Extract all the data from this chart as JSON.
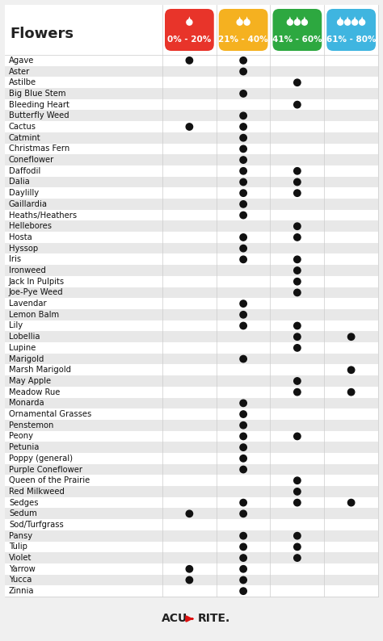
{
  "title": "Flowers",
  "columns": [
    "0% - 20%",
    "21% - 40%",
    "41% - 60%",
    "61% - 80%"
  ],
  "col_colors": [
    "#e8342a",
    "#f5b120",
    "#2da840",
    "#3fb5e0"
  ],
  "flowers": [
    "Agave",
    "Aster",
    "Astilbe",
    "Big Blue Stem",
    "Bleeding Heart",
    "Butterfly Weed",
    "Cactus",
    "Catmint",
    "Christmas Fern",
    "Coneflower",
    "Daffodil",
    "Dalia",
    "Daylilly",
    "Gaillardia",
    "Heaths/Heathers",
    "Hellebores",
    "Hosta",
    "Hyssop",
    "Iris",
    "Ironweed",
    "Jack In Pulpits",
    "Joe-Pye Weed",
    "Lavendar",
    "Lemon Balm",
    "Lily",
    "Lobellia",
    "Lupine",
    "Marigold",
    "Marsh Marigold",
    "May Apple",
    "Meadow Rue",
    "Monarda",
    "Ornamental Grasses",
    "Penstemon",
    "Peony",
    "Petunia",
    "Poppy (general)",
    "Purple Coneflower",
    "Queen of the Prairie",
    "Red Milkweed",
    "Sedges",
    "Sedum",
    "Sod/Turfgrass",
    "Pansy",
    "Tulip",
    "Violet",
    "Yarrow",
    "Yucca",
    "Zinnia"
  ],
  "dots": {
    "Agave": [
      1,
      1,
      0,
      0
    ],
    "Aster": [
      0,
      1,
      0,
      0
    ],
    "Astilbe": [
      0,
      0,
      1,
      0
    ],
    "Big Blue Stem": [
      0,
      1,
      0,
      0
    ],
    "Bleeding Heart": [
      0,
      0,
      1,
      0
    ],
    "Butterfly Weed": [
      0,
      1,
      0,
      0
    ],
    "Cactus": [
      1,
      1,
      0,
      0
    ],
    "Catmint": [
      0,
      1,
      0,
      0
    ],
    "Christmas Fern": [
      0,
      1,
      0,
      0
    ],
    "Coneflower": [
      0,
      1,
      0,
      0
    ],
    "Daffodil": [
      0,
      1,
      1,
      0
    ],
    "Dalia": [
      0,
      1,
      1,
      0
    ],
    "Daylilly": [
      0,
      1,
      1,
      0
    ],
    "Gaillardia": [
      0,
      1,
      0,
      0
    ],
    "Heaths/Heathers": [
      0,
      1,
      0,
      0
    ],
    "Hellebores": [
      0,
      0,
      1,
      0
    ],
    "Hosta": [
      0,
      1,
      1,
      0
    ],
    "Hyssop": [
      0,
      1,
      0,
      0
    ],
    "Iris": [
      0,
      1,
      1,
      0
    ],
    "Ironweed": [
      0,
      0,
      1,
      0
    ],
    "Jack In Pulpits": [
      0,
      0,
      1,
      0
    ],
    "Joe-Pye Weed": [
      0,
      0,
      1,
      0
    ],
    "Lavendar": [
      0,
      1,
      0,
      0
    ],
    "Lemon Balm": [
      0,
      1,
      0,
      0
    ],
    "Lily": [
      0,
      1,
      1,
      0
    ],
    "Lobellia": [
      0,
      0,
      1,
      1
    ],
    "Lupine": [
      0,
      0,
      1,
      0
    ],
    "Marigold": [
      0,
      1,
      0,
      0
    ],
    "Marsh Marigold": [
      0,
      0,
      0,
      1
    ],
    "May Apple": [
      0,
      0,
      1,
      0
    ],
    "Meadow Rue": [
      0,
      0,
      1,
      1
    ],
    "Monarda": [
      0,
      1,
      0,
      0
    ],
    "Ornamental Grasses": [
      0,
      1,
      0,
      0
    ],
    "Penstemon": [
      0,
      1,
      0,
      0
    ],
    "Peony": [
      0,
      1,
      1,
      0
    ],
    "Petunia": [
      0,
      1,
      0,
      0
    ],
    "Poppy (general)": [
      0,
      1,
      0,
      0
    ],
    "Purple Coneflower": [
      0,
      1,
      0,
      0
    ],
    "Queen of the Prairie": [
      0,
      0,
      1,
      0
    ],
    "Red Milkweed": [
      0,
      0,
      1,
      0
    ],
    "Sedges": [
      0,
      1,
      1,
      1
    ],
    "Sedum": [
      1,
      1,
      0,
      0
    ],
    "Sod/Turfgrass": [
      0,
      0,
      0,
      0
    ],
    "Pansy": [
      0,
      1,
      1,
      0
    ],
    "Tulip": [
      0,
      1,
      1,
      0
    ],
    "Violet": [
      0,
      1,
      1,
      0
    ],
    "Yarrow": [
      1,
      1,
      0,
      0
    ],
    "Yucca": [
      1,
      1,
      0,
      0
    ],
    "Zinnia": [
      0,
      1,
      0,
      0
    ]
  },
  "bg_color": "#f0f0f0",
  "row_colors": [
    "#ffffff",
    "#e8e8e8"
  ],
  "font_size_title": 13,
  "font_size_row": 7.2,
  "font_size_header": 7.5
}
